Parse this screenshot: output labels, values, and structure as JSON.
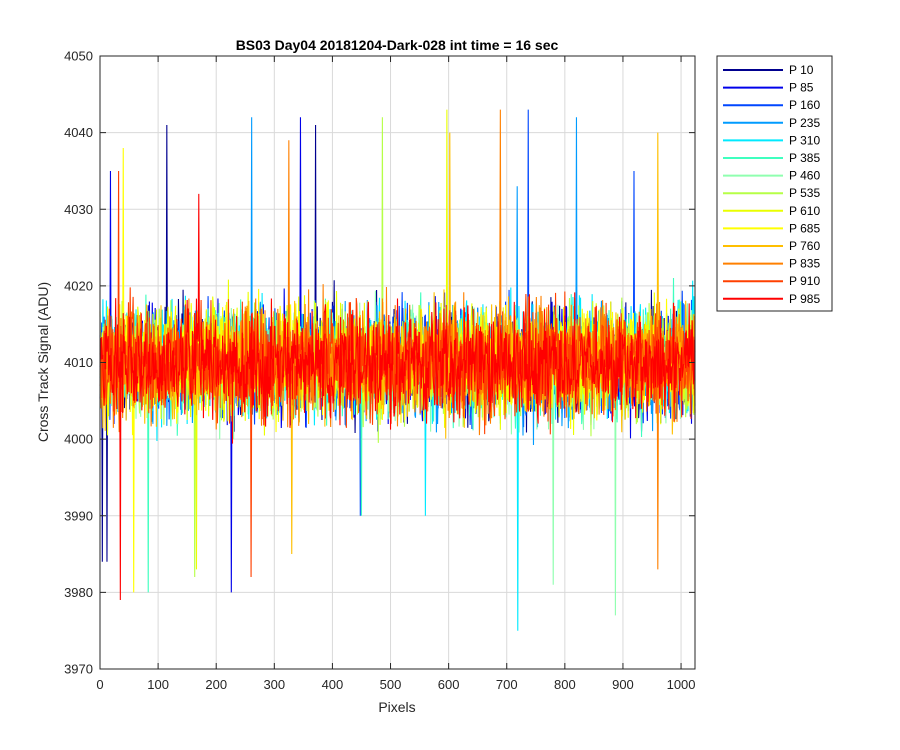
{
  "chart_data": {
    "type": "line",
    "title": "BS03 Day04 20181204-Dark-028 int time = 16 sec",
    "xlabel": "Pixels",
    "ylabel": "Cross Track Signal (ADU)",
    "xlim": [
      0,
      1024
    ],
    "ylim": [
      3970,
      4050
    ],
    "xticks": [
      0,
      100,
      200,
      300,
      400,
      500,
      600,
      700,
      800,
      900,
      1000
    ],
    "yticks": [
      3970,
      3980,
      3990,
      4000,
      4010,
      4020,
      4030,
      4040,
      4050
    ],
    "grid": true,
    "legend_position": "outside-top-right",
    "noise": {
      "mean": 4010,
      "typical_min": 3993,
      "typical_max": 4028
    },
    "series": [
      {
        "name": "P 10",
        "color": "#00008f",
        "extremes": [
          {
            "x": 115,
            "y": 4041
          },
          {
            "x": 371,
            "y": 4041
          },
          {
            "x": 4,
            "y": 3984
          },
          {
            "x": 12,
            "y": 3984
          }
        ]
      },
      {
        "name": "P 85",
        "color": "#0000ea",
        "extremes": [
          {
            "x": 345,
            "y": 4042
          },
          {
            "x": 226,
            "y": 3980
          },
          {
            "x": 18,
            "y": 4035
          }
        ]
      },
      {
        "name": "P 160",
        "color": "#0047ff",
        "extremes": [
          {
            "x": 737,
            "y": 4043
          },
          {
            "x": 919,
            "y": 4035
          },
          {
            "x": 448,
            "y": 3990
          }
        ]
      },
      {
        "name": "P 235",
        "color": "#009bff",
        "extremes": [
          {
            "x": 261,
            "y": 4042
          },
          {
            "x": 820,
            "y": 4042
          },
          {
            "x": 718,
            "y": 4033
          }
        ]
      },
      {
        "name": "P 310",
        "color": "#00eaff",
        "extremes": [
          {
            "x": 719,
            "y": 3975
          },
          {
            "x": 560,
            "y": 3990
          }
        ]
      },
      {
        "name": "P 385",
        "color": "#3fffbf",
        "extremes": [
          {
            "x": 83,
            "y": 3980
          },
          {
            "x": 450,
            "y": 3990
          }
        ]
      },
      {
        "name": "P 460",
        "color": "#8fffaf",
        "extremes": [
          {
            "x": 887,
            "y": 3977
          },
          {
            "x": 780,
            "y": 3981
          }
        ]
      },
      {
        "name": "P 535",
        "color": "#b6ff47",
        "extremes": [
          {
            "x": 486,
            "y": 4042
          },
          {
            "x": 163,
            "y": 3982
          }
        ]
      },
      {
        "name": "P 610",
        "color": "#eaff00",
        "extremes": [
          {
            "x": 597,
            "y": 4043
          },
          {
            "x": 166,
            "y": 3983
          }
        ]
      },
      {
        "name": "P 685",
        "color": "#ffff00",
        "extremes": [
          {
            "x": 40,
            "y": 4038
          },
          {
            "x": 58,
            "y": 3980
          }
        ]
      },
      {
        "name": "P 760",
        "color": "#ffbf00",
        "extremes": [
          {
            "x": 602,
            "y": 4040
          },
          {
            "x": 960,
            "y": 4040
          },
          {
            "x": 330,
            "y": 3985
          }
        ]
      },
      {
        "name": "P 835",
        "color": "#ff8000",
        "extremes": [
          {
            "x": 689,
            "y": 4043
          },
          {
            "x": 325,
            "y": 4039
          },
          {
            "x": 960,
            "y": 3983
          }
        ]
      },
      {
        "name": "P 910",
        "color": "#ff4000",
        "extremes": [
          {
            "x": 260,
            "y": 3982
          },
          {
            "x": 32,
            "y": 4035
          }
        ]
      },
      {
        "name": "P 985",
        "color": "#ff0000",
        "extremes": [
          {
            "x": 35,
            "y": 3979
          },
          {
            "x": 170,
            "y": 4032
          }
        ]
      }
    ]
  }
}
